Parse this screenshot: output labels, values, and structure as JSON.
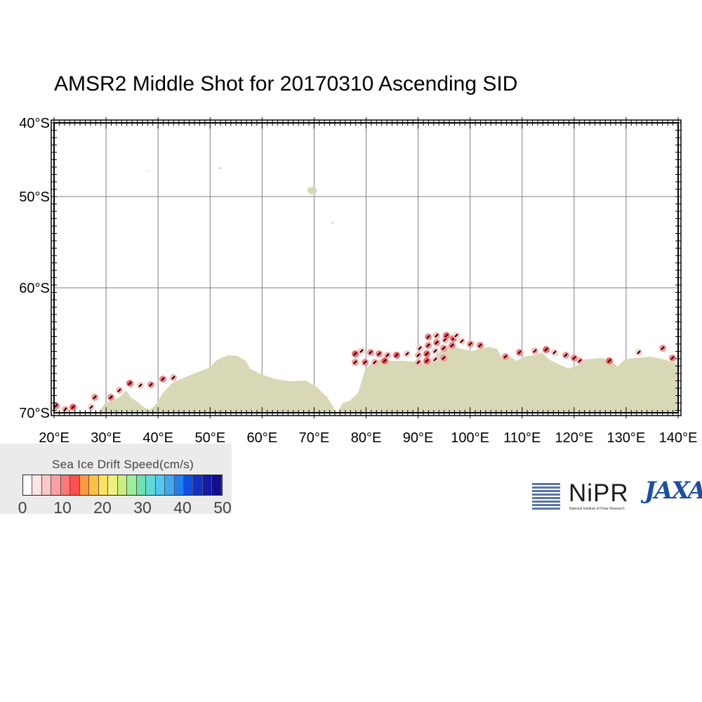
{
  "title": "AMSR2 Middle Shot for 20170310 Ascending SID",
  "map": {
    "lat_labels": [
      "40°S",
      "50°S",
      "60°S",
      "70°S"
    ],
    "lat_values": [
      -40,
      -50,
      -60,
      -70
    ],
    "lon_labels": [
      "20°E",
      "30°E",
      "40°E",
      "50°E",
      "60°E",
      "70°E",
      "80°E",
      "90°E",
      "100°E",
      "110°E",
      "120°E",
      "130°E",
      "140°E"
    ],
    "lon_values": [
      20,
      30,
      40,
      50,
      60,
      70,
      80,
      90,
      100,
      110,
      120,
      130,
      140
    ],
    "land_color": "#d8d8b6",
    "grid_color": "#808080"
  },
  "legend": {
    "title": "Sea Ice Drift Speed(cm/s)",
    "tick_labels": [
      "0",
      "10",
      "20",
      "30",
      "40",
      "50"
    ],
    "colors": [
      "#ffffff",
      "#ffe4e4",
      "#ffc8c8",
      "#ffa0a0",
      "#ff7878",
      "#ff5050",
      "#ff9a3c",
      "#ffc040",
      "#ffe060",
      "#f0f080",
      "#c8f080",
      "#98f098",
      "#70e0b0",
      "#60d8d8",
      "#50c8f0",
      "#40a8f0",
      "#2080f0",
      "#1050e0",
      "#1030c8",
      "#1818a8",
      "#10108c"
    ]
  },
  "logos": {
    "nipr": "NiPR",
    "nipr_sub": "National Institute of Polar Research",
    "jaxa": "JAXA",
    "jaxa_sub": "Japan Aerospace Exploration Agency"
  }
}
